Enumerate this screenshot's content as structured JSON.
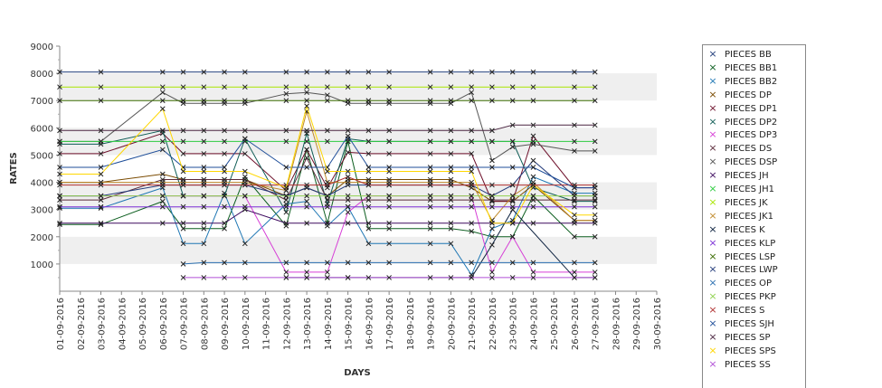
{
  "chart_data": {
    "type": "line",
    "xlabel": "DAYS",
    "ylabel": "RATES",
    "ylim": [
      0,
      9000
    ],
    "y_ticks": [
      1000,
      2000,
      3000,
      4000,
      5000,
      6000,
      7000,
      8000,
      9000
    ],
    "grid": "alternating horizontal bands",
    "legend_position": "right",
    "categories": [
      "01-09-2016",
      "02-09-2016",
      "03-09-2016",
      "04-09-2016",
      "05-09-2016",
      "06-09-2016",
      "07-09-2016",
      "08-09-2016",
      "09-09-2016",
      "10-09-2016",
      "11-09-2016",
      "12-09-2016",
      "13-09-2016",
      "14-09-2016",
      "15-09-2016",
      "16-09-2016",
      "17-09-2016",
      "18-09-2016",
      "19-09-2016",
      "20-09-2016",
      "21-09-2016",
      "22-09-2016",
      "23-09-2016",
      "24-09-2016",
      "25-09-2016",
      "26-09-2016",
      "27-09-2016",
      "28-09-2016",
      "29-09-2016",
      "30-09-2016"
    ],
    "series": [
      {
        "name": "PIECES BB",
        "color": "#1f3b7a",
        "values": [
          8050,
          null,
          8050,
          null,
          null,
          8050,
          8050,
          8050,
          8050,
          8050,
          null,
          8050,
          8050,
          8050,
          8050,
          8050,
          8050,
          null,
          8050,
          8050,
          8050,
          8050,
          8050,
          8050,
          null,
          8050,
          8050,
          null,
          null,
          null
        ]
      },
      {
        "name": "PIECES BB1",
        "color": "#0b5d1e",
        "values": [
          2450,
          null,
          2450,
          null,
          null,
          3300,
          2300,
          2300,
          2300,
          4200,
          null,
          2400,
          5200,
          2500,
          5500,
          2300,
          2300,
          null,
          2300,
          2300,
          2200,
          2000,
          2000,
          3500,
          null,
          2000,
          2000,
          null,
          null,
          null
        ]
      },
      {
        "name": "PIECES BB2",
        "color": "#1f77b4",
        "values": [
          3050,
          null,
          3050,
          null,
          null,
          3800,
          1750,
          1750,
          3600,
          1750,
          null,
          3200,
          3300,
          2400,
          3100,
          1750,
          1750,
          null,
          1750,
          1750,
          600,
          2300,
          2600,
          4200,
          null,
          3600,
          3600,
          null,
          null,
          null
        ]
      },
      {
        "name": "PIECES DP",
        "color": "#7a4a00",
        "values": [
          4000,
          null,
          4000,
          null,
          null,
          4300,
          4100,
          4100,
          4100,
          4100,
          null,
          3500,
          3800,
          3500,
          4100,
          4100,
          4100,
          null,
          4100,
          4100,
          3800,
          3300,
          3300,
          3900,
          null,
          2600,
          2600,
          null,
          null,
          null
        ]
      },
      {
        "name": "PIECES DP1",
        "color": "#6d0f2a",
        "values": [
          5050,
          null,
          5050,
          null,
          null,
          5800,
          5050,
          5050,
          5050,
          5050,
          null,
          3700,
          5200,
          3800,
          5100,
          5050,
          5050,
          null,
          5050,
          5050,
          5050,
          3300,
          3300,
          5700,
          null,
          3800,
          3800,
          null,
          null,
          null
        ]
      },
      {
        "name": "PIECES DP2",
        "color": "#0e5c55",
        "values": [
          5400,
          null,
          5400,
          null,
          null,
          5900,
          3500,
          3500,
          3500,
          5600,
          null,
          2900,
          5800,
          3200,
          5600,
          5500,
          5500,
          null,
          5500,
          5500,
          5500,
          5500,
          5500,
          3800,
          null,
          3300,
          3300,
          null,
          null,
          null
        ]
      },
      {
        "name": "PIECES DP3",
        "color": "#d63fd6",
        "values": [
          3500,
          null,
          3500,
          null,
          null,
          3500,
          3500,
          3500,
          3500,
          3500,
          null,
          700,
          700,
          700,
          2900,
          3500,
          3500,
          null,
          3500,
          3500,
          3500,
          700,
          2000,
          700,
          null,
          700,
          700,
          null,
          null,
          null
        ]
      },
      {
        "name": "PIECES DS",
        "color": "#5b2a3a",
        "values": [
          3350,
          null,
          3350,
          null,
          null,
          4100,
          4100,
          4100,
          4100,
          4100,
          null,
          3350,
          4900,
          3350,
          3350,
          3350,
          3350,
          null,
          3350,
          3350,
          3350,
          3350,
          3350,
          3350,
          null,
          3350,
          3350,
          null,
          null,
          null
        ]
      },
      {
        "name": "PIECES DSP",
        "color": "#555555",
        "values": [
          5500,
          null,
          5500,
          null,
          null,
          7300,
          6900,
          6900,
          6900,
          6900,
          null,
          7250,
          7300,
          7200,
          6900,
          6900,
          6900,
          null,
          6900,
          6900,
          7300,
          4800,
          5300,
          5400,
          null,
          5150,
          5150,
          null,
          null,
          null
        ]
      },
      {
        "name": "PIECES JH",
        "color": "#3d0a5e",
        "values": [
          2500,
          null,
          2500,
          null,
          null,
          2500,
          2500,
          2500,
          2500,
          3000,
          null,
          2500,
          2500,
          2500,
          2500,
          2500,
          2500,
          null,
          2500,
          2500,
          2500,
          2500,
          2500,
          2500,
          null,
          2500,
          2500,
          null,
          null,
          null
        ]
      },
      {
        "name": "PIECES JH1",
        "color": "#2ecc40",
        "values": [
          5500,
          null,
          5500,
          null,
          null,
          5500,
          5500,
          5500,
          5500,
          5500,
          null,
          5500,
          5500,
          5500,
          5500,
          5500,
          5500,
          null,
          5500,
          5500,
          5500,
          5500,
          5500,
          5500,
          null,
          5500,
          5500,
          null,
          null,
          null
        ]
      },
      {
        "name": "PIECES JK",
        "color": "#a8e600",
        "values": [
          7500,
          null,
          7500,
          null,
          null,
          7500,
          7500,
          7500,
          7500,
          7500,
          null,
          7500,
          7500,
          7500,
          7500,
          7500,
          7500,
          null,
          7500,
          7500,
          7500,
          7500,
          7500,
          7500,
          null,
          7500,
          7500,
          null,
          null,
          null
        ]
      },
      {
        "name": "PIECES JK1",
        "color": "#c08a2b",
        "values": [
          4000,
          null,
          4000,
          null,
          null,
          4000,
          4000,
          4000,
          4000,
          4000,
          null,
          3700,
          6600,
          4000,
          4000,
          4000,
          4000,
          null,
          4000,
          4000,
          4000,
          2600,
          3500,
          4000,
          null,
          2600,
          2600,
          null,
          null,
          null
        ]
      },
      {
        "name": "PIECES K",
        "color": "#0a1f3d",
        "values": [
          null,
          null,
          null,
          null,
          null,
          null,
          null,
          null,
          null,
          null,
          null,
          500,
          500,
          500,
          500,
          null,
          null,
          null,
          null,
          null,
          500,
          1700,
          3000,
          null,
          null,
          500,
          500,
          null,
          null,
          null
        ]
      },
      {
        "name": "PIECES KLP",
        "color": "#7b2fd6",
        "values": [
          3100,
          null,
          3100,
          null,
          null,
          3100,
          3100,
          3100,
          3100,
          3100,
          null,
          3100,
          3100,
          3100,
          3100,
          3100,
          3100,
          null,
          3100,
          3100,
          3100,
          3100,
          3100,
          3100,
          null,
          3100,
          3100,
          null,
          null,
          null
        ]
      },
      {
        "name": "PIECES LSP",
        "color": "#3a6b00",
        "values": [
          7000,
          null,
          7000,
          null,
          null,
          7000,
          7000,
          7000,
          7000,
          7000,
          null,
          7000,
          7000,
          7000,
          7000,
          7000,
          7000,
          null,
          7000,
          7000,
          7000,
          7000,
          7000,
          7000,
          null,
          7000,
          7000,
          null,
          null,
          null
        ]
      },
      {
        "name": "PIECES LWP",
        "color": "#223a7a",
        "values": [
          3500,
          null,
          3500,
          null,
          null,
          3900,
          3900,
          3900,
          3900,
          3900,
          null,
          3500,
          3800,
          3500,
          3900,
          3900,
          3900,
          null,
          3900,
          3900,
          3900,
          3500,
          3900,
          4800,
          null,
          3500,
          3500,
          null,
          null,
          null
        ]
      },
      {
        "name": "PIECES OP",
        "color": "#2a6fb0",
        "values": [
          null,
          null,
          null,
          null,
          null,
          null,
          1000,
          1050,
          1050,
          1050,
          null,
          1050,
          1050,
          1050,
          1050,
          1050,
          1050,
          null,
          1050,
          1050,
          1050,
          1050,
          1050,
          1050,
          null,
          1050,
          1050,
          null,
          null,
          null
        ]
      },
      {
        "name": "PIECES PKP",
        "color": "#8fd14f",
        "values": [
          3500,
          null,
          3500,
          null,
          null,
          3500,
          3500,
          3500,
          3500,
          3500,
          null,
          3500,
          3500,
          3500,
          3500,
          3500,
          3500,
          null,
          3500,
          3500,
          3500,
          3500,
          3500,
          3500,
          null,
          3500,
          3500,
          null,
          null,
          null
        ]
      },
      {
        "name": "PIECES S",
        "color": "#b03030",
        "values": [
          3900,
          null,
          3900,
          null,
          null,
          3900,
          3900,
          3900,
          3900,
          3900,
          null,
          3900,
          3900,
          3900,
          4200,
          3900,
          3900,
          null,
          3900,
          3900,
          3900,
          3900,
          3900,
          3900,
          null,
          3900,
          3900,
          null,
          null,
          null
        ]
      },
      {
        "name": "PIECES SJH",
        "color": "#1f4e99",
        "values": [
          4550,
          null,
          4550,
          null,
          null,
          5200,
          4550,
          4550,
          4550,
          5600,
          null,
          4550,
          4550,
          4550,
          5700,
          4550,
          4550,
          null,
          4550,
          4550,
          4550,
          4550,
          4550,
          4550,
          null,
          3800,
          3800,
          null,
          null,
          null
        ]
      },
      {
        "name": "PIECES SP",
        "color": "#4a2540",
        "values": [
          5900,
          null,
          5900,
          null,
          null,
          5900,
          5900,
          5900,
          5900,
          5900,
          null,
          5900,
          5900,
          5900,
          5900,
          5900,
          5900,
          null,
          5900,
          5900,
          5900,
          5900,
          6100,
          6100,
          null,
          6100,
          6100,
          null,
          null,
          null
        ]
      },
      {
        "name": "PIECES SPS",
        "color": "#ffd700",
        "values": [
          4300,
          null,
          4300,
          null,
          null,
          6700,
          4400,
          4400,
          4400,
          4400,
          null,
          3800,
          6800,
          4400,
          4400,
          4400,
          4400,
          null,
          4400,
          4400,
          4400,
          2500,
          2500,
          3900,
          null,
          2800,
          2800,
          null,
          null,
          null
        ]
      },
      {
        "name": "PIECES SS",
        "color": "#b04fd6",
        "values": [
          null,
          null,
          null,
          null,
          null,
          null,
          500,
          500,
          500,
          500,
          null,
          500,
          500,
          500,
          500,
          500,
          500,
          null,
          500,
          500,
          500,
          500,
          500,
          500,
          null,
          500,
          500,
          null,
          null,
          null
        ]
      }
    ]
  }
}
